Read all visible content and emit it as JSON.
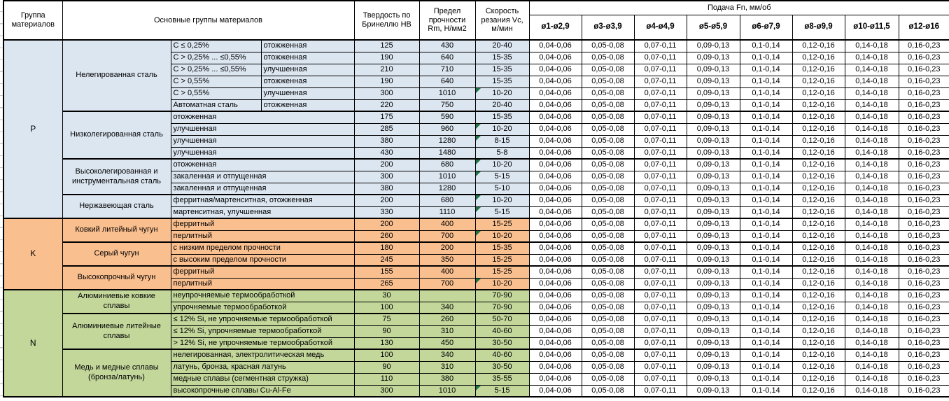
{
  "header": {
    "col_group": "Группа материалов",
    "col_main_groups": "Основные группы материалов",
    "col_hardness": "Твердость по Бринеллю HB",
    "col_strength": "Предел прочности Rm, Н/мм2",
    "col_speed": "Скорость резания Vc, м/мин",
    "feed_title": "Подача Fn, мм/об",
    "feed_columns": [
      "ø1-ø2,9",
      "ø3-ø3,9",
      "ø4-ø4,9",
      "ø5-ø5,9",
      "ø6-ø7,9",
      "ø8-ø9,9",
      "ø10-ø11,5",
      "ø12-ø16"
    ]
  },
  "feed_values": [
    "0,04-0,06",
    "0,05-0,08",
    "0,07-0,11",
    "0,09-0,13",
    "0,1-0,14",
    "0,12-0,16",
    "0,14-0,18",
    "0,16-0,23"
  ],
  "colors": {
    "section_p": "#dce6f1",
    "section_k": "#fabf8f",
    "section_n": "#c3d79b",
    "comment_flag": "#1e7446",
    "border": "#000000",
    "feed_background": "#ffffff"
  },
  "sections": [
    {
      "code": "P",
      "color_key": "p-bg",
      "groups": [
        {
          "name": "Нелегированная сталь",
          "rows": [
            {
              "attr": "C ≤ 0,25%",
              "state": "отожженная",
              "hb": "125",
              "rm": "430",
              "vc": "20-40",
              "flag": false
            },
            {
              "attr": "C > 0,25% ... ≤0,55%",
              "state": "отожженная",
              "hb": "190",
              "rm": "640",
              "vc": "15-35",
              "flag": false
            },
            {
              "attr": "C > 0,25% ... ≤0,55%",
              "state": "улучшенная",
              "hb": "210",
              "rm": "710",
              "vc": "15-35",
              "flag": false
            },
            {
              "attr": "C > 0,55%",
              "state": "отожженная",
              "hb": "190",
              "rm": "640",
              "vc": "15-35",
              "flag": false
            },
            {
              "attr": "C > 0,55%",
              "state": "улучшенная",
              "hb": "300",
              "rm": "1010",
              "vc": "10-20",
              "flag": true
            },
            {
              "attr": "Автоматная сталь",
              "state": "отожженная",
              "hb": "220",
              "rm": "750",
              "vc": "20-40",
              "flag": false
            }
          ]
        },
        {
          "name": "Низколегированная сталь",
          "rows": [
            {
              "attr": "отожженная",
              "state": null,
              "hb": "175",
              "rm": "590",
              "vc": "15-35",
              "flag": false
            },
            {
              "attr": "улучшенная",
              "state": null,
              "hb": "285",
              "rm": "960",
              "vc": "10-20",
              "flag": true
            },
            {
              "attr": "улучшенная",
              "state": null,
              "hb": "380",
              "rm": "1280",
              "vc": "8-15",
              "flag": true
            },
            {
              "attr": "улучшенная",
              "state": null,
              "hb": "430",
              "rm": "1480",
              "vc": "5-8",
              "flag": false
            }
          ]
        },
        {
          "name": "Высоколегированная и инструментальная сталь",
          "rows": [
            {
              "attr": "отожженная",
              "state": null,
              "hb": "200",
              "rm": "680",
              "vc": "10-20",
              "flag": true
            },
            {
              "attr": "закаленная и отпущенная",
              "state": null,
              "hb": "300",
              "rm": "1010",
              "vc": "5-15",
              "flag": true
            },
            {
              "attr": "закаленная и отпущенная",
              "state": null,
              "hb": "380",
              "rm": "1280",
              "vc": "5-10",
              "flag": false
            }
          ]
        },
        {
          "name": "Нержавеющая сталь",
          "rows": [
            {
              "attr": "ферритная/мартенситная, отожженная",
              "state": null,
              "hb": "200",
              "rm": "680",
              "vc": "10-20",
              "flag": true
            },
            {
              "attr": "мартенситная, улучшенная",
              "state": null,
              "hb": "330",
              "rm": "1110",
              "vc": "5-15",
              "flag": true
            }
          ]
        }
      ]
    },
    {
      "code": "K",
      "color_key": "k-bg",
      "groups": [
        {
          "name": "Ковкий литейный чугун",
          "rows": [
            {
              "attr": "ферритный",
              "state": null,
              "hb": "200",
              "rm": "400",
              "vc": "15-25",
              "flag": false
            },
            {
              "attr": "перлитный",
              "state": null,
              "hb": "260",
              "rm": "700",
              "vc": "10-20",
              "flag": true
            }
          ]
        },
        {
          "name": "Серый чугун",
          "rows": [
            {
              "attr": "с низким пределом прочности",
              "state": null,
              "hb": "180",
              "rm": "200",
              "vc": "15-35",
              "flag": false
            },
            {
              "attr": "с высоким пределом прочности",
              "state": null,
              "hb": "245",
              "rm": "350",
              "vc": "15-25",
              "flag": false
            }
          ]
        },
        {
          "name": "Высокопрочный чугун",
          "rows": [
            {
              "attr": "ферритный",
              "state": null,
              "hb": "155",
              "rm": "400",
              "vc": "15-25",
              "flag": false
            },
            {
              "attr": "перлитный",
              "state": null,
              "hb": "265",
              "rm": "700",
              "vc": "10-20",
              "flag": true
            }
          ]
        }
      ]
    },
    {
      "code": "N",
      "color_key": "n-bg",
      "groups": [
        {
          "name": "Алюминиевые ковкие сплавы",
          "rows": [
            {
              "attr": "неупрочняемые термообработкой",
              "state": null,
              "hb": "30",
              "rm": "",
              "vc": "70-90",
              "flag": false
            },
            {
              "attr": "упрочняемые термообработкой",
              "state": null,
              "hb": "100",
              "rm": "340",
              "vc": "70-90",
              "flag": false
            }
          ]
        },
        {
          "name": "Алюминиевые литейные сплавы",
          "rows": [
            {
              "attr": "≤ 12% Si, не упрочняемые термообработкой",
              "state": null,
              "hb": "75",
              "rm": "260",
              "vc": "50-70",
              "flag": false
            },
            {
              "attr": "≤ 12% Si, упрочняемые термообработкой",
              "state": null,
              "hb": "90",
              "rm": "310",
              "vc": "40-60",
              "flag": false
            },
            {
              "attr": "> 12% Si, не упрочняемые термообработкой",
              "state": null,
              "hb": "130",
              "rm": "450",
              "vc": "30-50",
              "flag": false
            }
          ]
        },
        {
          "name": "Медь и медные сплавы (бронза/латунь)",
          "rows": [
            {
              "attr": "нелегированная, электролитическая медь",
              "state": null,
              "hb": "100",
              "rm": "340",
              "vc": "40-60",
              "flag": false
            },
            {
              "attr": "латунь, бронза, красная латунь",
              "state": null,
              "hb": "90",
              "rm": "310",
              "vc": "30-50",
              "flag": false
            },
            {
              "attr": "медные сплавы (сегментная стружка)",
              "state": null,
              "hb": "110",
              "rm": "380",
              "vc": "35-55",
              "flag": false
            },
            {
              "attr": "высокопрочные сплавы Cu-Al-Fe",
              "state": null,
              "hb": "300",
              "rm": "1010",
              "vc": "5-15",
              "flag": true
            }
          ]
        }
      ]
    }
  ]
}
